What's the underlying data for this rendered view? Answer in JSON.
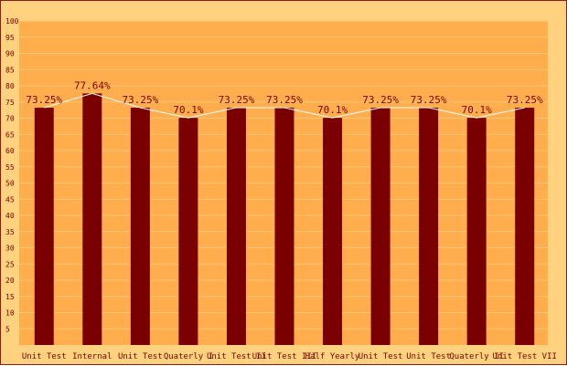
{
  "chart_data": {
    "type": "bar",
    "categories": [
      "Unit Test",
      "Internal",
      "Unit Test",
      "Quaterly I",
      "Unit Test II",
      "Unit Test III",
      "Half Yearly",
      "Unit Test",
      "Unit Test",
      "Quaterly II",
      "Unit Test VII"
    ],
    "values": [
      73.25,
      77.64,
      73.25,
      70.1,
      73.25,
      73.25,
      70.1,
      73.25,
      73.25,
      70.1,
      73.25
    ],
    "data_labels": [
      "73.25%",
      "77.64%",
      "73.25%",
      "70.1%",
      "73.25%",
      "73.25%",
      "70.1%",
      "73.25%",
      "73.25%",
      "70.1%",
      "73.25%"
    ],
    "ylim": [
      0,
      100
    ],
    "yticks": [
      5,
      10,
      15,
      20,
      25,
      30,
      35,
      40,
      45,
      50,
      55,
      60,
      65,
      70,
      75,
      80,
      85,
      90,
      95,
      100
    ],
    "grid": true,
    "overlay_line": true,
    "colors": {
      "outer_background": "#ffd27f",
      "plot_background": "#ffad4d",
      "bar": "#7a0000",
      "text": "#7a0000",
      "line": "#ffffff",
      "border": "#8b1a1a",
      "grid": "#ffc77a"
    }
  }
}
